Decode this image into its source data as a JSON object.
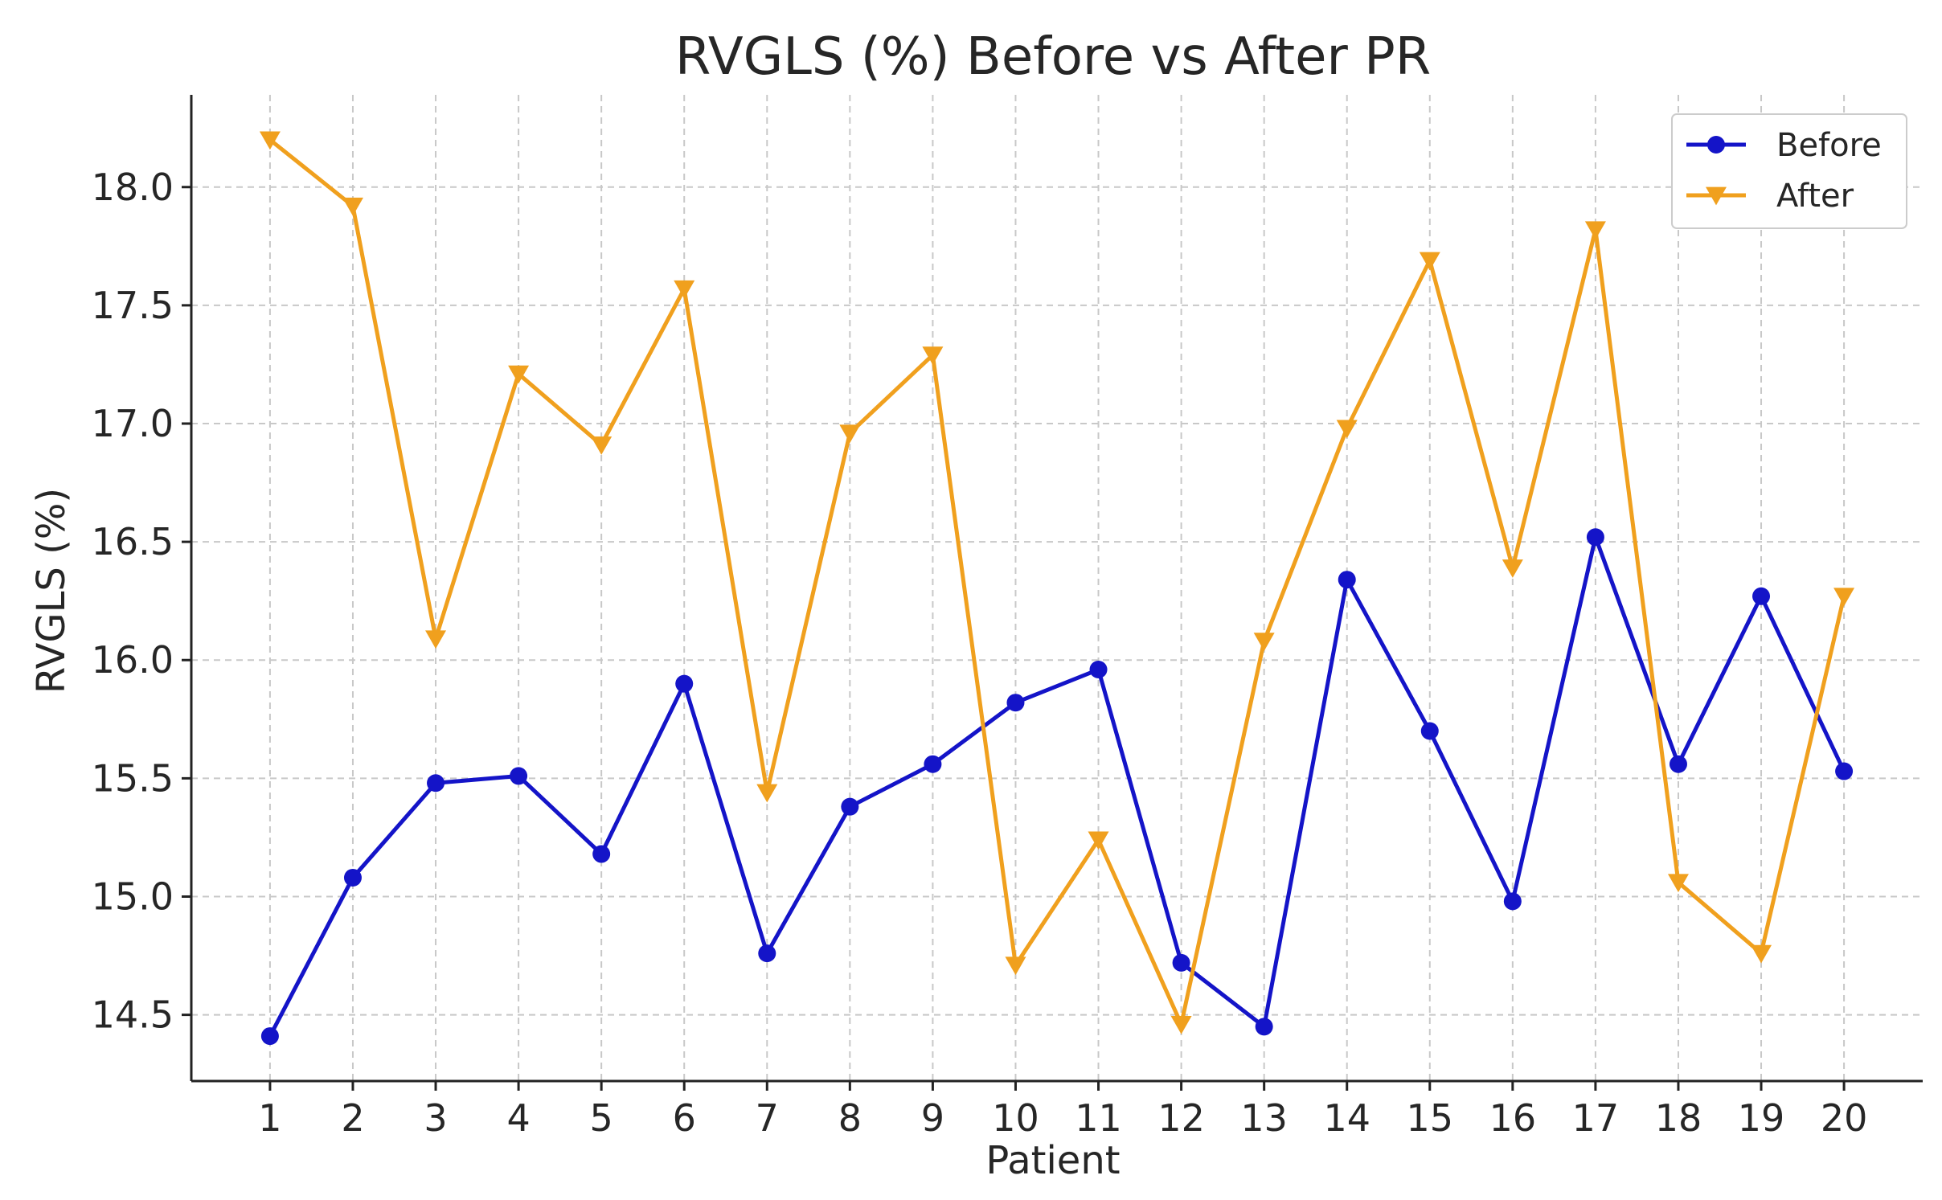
{
  "chart_data": {
    "type": "line",
    "title": "RVGLS (%) Before vs After PR",
    "xlabel": "Patient",
    "ylabel": "RVGLS (%)",
    "x": [
      1,
      2,
      3,
      4,
      5,
      6,
      7,
      8,
      9,
      10,
      11,
      12,
      13,
      14,
      15,
      16,
      17,
      18,
      19,
      20
    ],
    "x_tick_labels": [
      "1",
      "2",
      "3",
      "4",
      "5",
      "6",
      "7",
      "8",
      "9",
      "10",
      "11",
      "12",
      "13",
      "14",
      "15",
      "16",
      "17",
      "18",
      "19",
      "20"
    ],
    "xlim": [
      0.05,
      20.95
    ],
    "ylim": [
      14.22,
      18.39
    ],
    "y_ticks": [
      14.5,
      15.0,
      15.5,
      16.0,
      16.5,
      17.0,
      17.5,
      18.0
    ],
    "y_tick_labels": [
      "14.5",
      "15.0",
      "15.5",
      "16.0",
      "16.5",
      "17.0",
      "17.5",
      "18.0"
    ],
    "grid": true,
    "legend_position": "top-right",
    "series": [
      {
        "name": "Before",
        "marker": "circle",
        "color": "#1414c8",
        "values": [
          14.41,
          15.08,
          15.48,
          15.51,
          15.18,
          15.9,
          14.76,
          15.38,
          15.56,
          15.82,
          15.96,
          14.72,
          14.45,
          16.34,
          15.7,
          14.98,
          16.52,
          15.56,
          16.27,
          15.53
        ]
      },
      {
        "name": "After",
        "marker": "triangle-down",
        "color": "#f0a01e",
        "values": [
          18.2,
          17.92,
          16.09,
          17.21,
          16.91,
          17.57,
          15.44,
          16.96,
          17.29,
          14.71,
          15.24,
          14.46,
          16.08,
          16.98,
          17.69,
          16.39,
          17.82,
          15.06,
          14.76,
          16.27
        ]
      }
    ]
  }
}
